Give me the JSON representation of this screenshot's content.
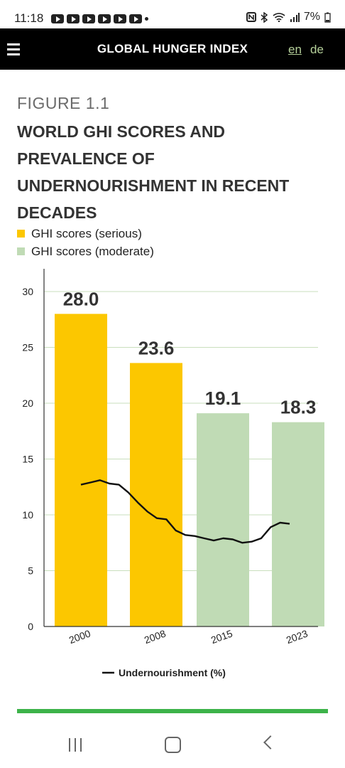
{
  "status_bar": {
    "time": "11:18",
    "battery": "7%",
    "icons": [
      "youtube-icon",
      "youtube-icon",
      "youtube-icon",
      "youtube-icon",
      "youtube-icon",
      "youtube-icon",
      "nfc-icon",
      "bluetooth-icon",
      "wifi-icon",
      "signal-icon",
      "battery-icon"
    ]
  },
  "header": {
    "title": "GLOBAL HUNGER INDEX",
    "lang_en": "en",
    "lang_de": "de"
  },
  "figure": {
    "label": "FIGURE 1.1",
    "title": "WORLD GHI SCORES AND PREVALENCE OF UNDERNOURISHMENT IN RECENT DECADES",
    "legend_serious": "GHI scores (serious)",
    "legend_moderate": "GHI scores (moderate)",
    "serious_color": "#fcc700",
    "moderate_color": "#c0dbb5"
  },
  "chart_data": {
    "type": "bar",
    "categories": [
      "2000",
      "2008",
      "2015",
      "2023"
    ],
    "values": [
      28.0,
      23.6,
      19.1,
      18.3
    ],
    "value_labels": [
      "28.0",
      "23.6",
      "19.1",
      "18.3"
    ],
    "bar_groups": [
      "serious",
      "serious",
      "moderate",
      "moderate"
    ],
    "ylim": [
      0,
      30
    ],
    "yticks": [
      "0",
      "5",
      "10",
      "15",
      "20",
      "25",
      "30"
    ],
    "grid": true,
    "line_series": {
      "name": "Undernourishment (%)",
      "x": [
        2000,
        2001,
        2002,
        2003,
        2004,
        2005,
        2006,
        2007,
        2008,
        2009,
        2010,
        2011,
        2012,
        2013,
        2014,
        2015,
        2016,
        2017,
        2018,
        2019,
        2020,
        2021,
        2022
      ],
      "y": [
        12.7,
        12.9,
        13.1,
        12.8,
        12.7,
        12.0,
        11.1,
        10.3,
        9.7,
        9.6,
        8.6,
        8.2,
        8.1,
        7.9,
        7.7,
        7.9,
        7.8,
        7.5,
        7.6,
        7.9,
        8.9,
        9.3,
        9.2
      ]
    }
  },
  "nav": {
    "recents": "recents-icon",
    "home": "home-icon",
    "back": "back-icon"
  }
}
